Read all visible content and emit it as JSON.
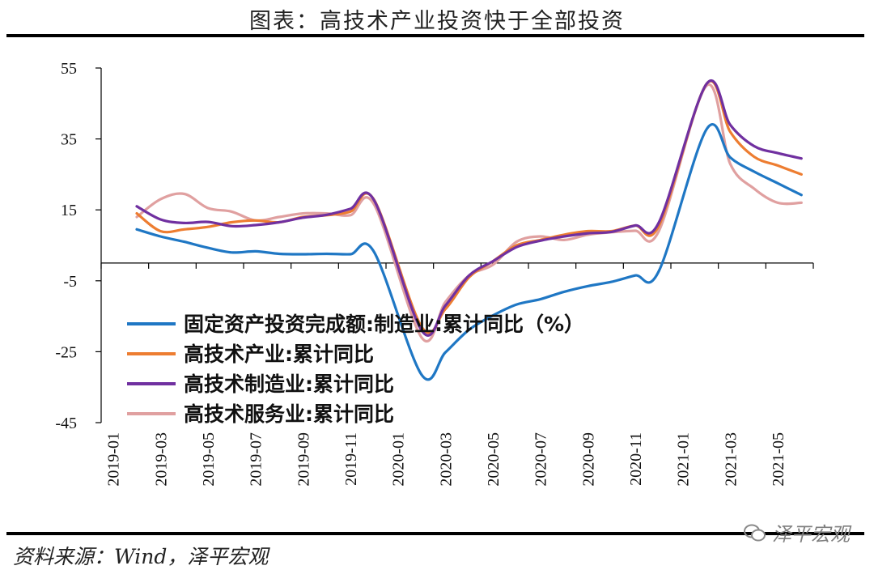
{
  "header": {
    "title": "图表：高技术产业投资快于全部投资"
  },
  "footer": {
    "source": "资料来源：Wind，泽平宏观",
    "watermark": "泽平宏观"
  },
  "chart_data": {
    "type": "line",
    "title": "图表：高技术产业投资快于全部投资",
    "xlabel": "",
    "ylabel": "",
    "ylim": [
      -45,
      55
    ],
    "yticks": [
      55,
      35,
      15,
      -5,
      -25,
      -45
    ],
    "x": [
      "2019-01",
      "2019-02",
      "2019-03",
      "2019-04",
      "2019-05",
      "2019-06",
      "2019-07",
      "2019-08",
      "2019-09",
      "2019-10",
      "2019-11",
      "2019-12",
      "2020-01",
      "2020-02",
      "2020-03",
      "2020-04",
      "2020-05",
      "2020-06",
      "2020-07",
      "2020-08",
      "2020-09",
      "2020-10",
      "2020-11",
      "2020-12",
      "2021-01",
      "2021-02",
      "2021-03",
      "2021-04",
      "2021-05",
      "2021-06"
    ],
    "xtick_labels": [
      "2019-01",
      "2019-03",
      "2019-05",
      "2019-07",
      "2019-09",
      "2019-11",
      "2020-01",
      "2020-03",
      "2020-05",
      "2020-07",
      "2020-09",
      "2020-11",
      "2021-01",
      "2021-03",
      "2021-05"
    ],
    "grid": false,
    "legend_position": "lower-left",
    "series": [
      {
        "name": "固定资产投资完成额:制造业:累计同比（%）",
        "color": "#1f77c4",
        "values": [
          null,
          9.5,
          7.5,
          6.0,
          4.3,
          3.0,
          3.3,
          2.6,
          2.5,
          2.6,
          2.5,
          3.1,
          null,
          -31.5,
          -25.2,
          -18.8,
          -14.8,
          -11.7,
          -10.2,
          -8.1,
          -6.5,
          -5.3,
          -3.5,
          -2.2,
          null,
          37.7,
          29.8,
          25.8,
          22.5,
          19.2
        ]
      },
      {
        "name": "高技术产业:累计同比",
        "color": "#ed7d31",
        "values": [
          null,
          14.0,
          9.0,
          9.5,
          10.2,
          11.5,
          12.0,
          11.5,
          13.0,
          13.5,
          14.5,
          17.8,
          null,
          -18.0,
          -13.0,
          -4.0,
          0.5,
          5.0,
          6.5,
          8.0,
          9.0,
          9.0,
          10.6,
          10.6,
          null,
          50.5,
          37.0,
          30.0,
          27.5,
          25.0
        ]
      },
      {
        "name": "高技术制造业:累计同比",
        "color": "#7030a0",
        "values": [
          null,
          16.0,
          12.3,
          11.3,
          11.6,
          10.4,
          10.7,
          11.5,
          12.8,
          13.6,
          15.3,
          17.7,
          null,
          -19.0,
          -12.0,
          -3.5,
          0.5,
          4.5,
          6.3,
          7.5,
          8.4,
          8.8,
          10.6,
          11.5,
          null,
          50.5,
          39.0,
          33.0,
          31.0,
          29.5
        ]
      },
      {
        "name": "高技术服务业:累计同比",
        "color": "#e0a0a0",
        "values": [
          null,
          13.0,
          18.0,
          19.5,
          15.5,
          14.5,
          12.0,
          13.0,
          14.0,
          14.0,
          13.5,
          16.5,
          null,
          -21.0,
          -11.0,
          -3.5,
          -0.5,
          6.0,
          7.5,
          6.5,
          8.0,
          8.7,
          9.1,
          9.1,
          null,
          50.0,
          28.0,
          21.0,
          17.0,
          17.0
        ]
      }
    ]
  }
}
